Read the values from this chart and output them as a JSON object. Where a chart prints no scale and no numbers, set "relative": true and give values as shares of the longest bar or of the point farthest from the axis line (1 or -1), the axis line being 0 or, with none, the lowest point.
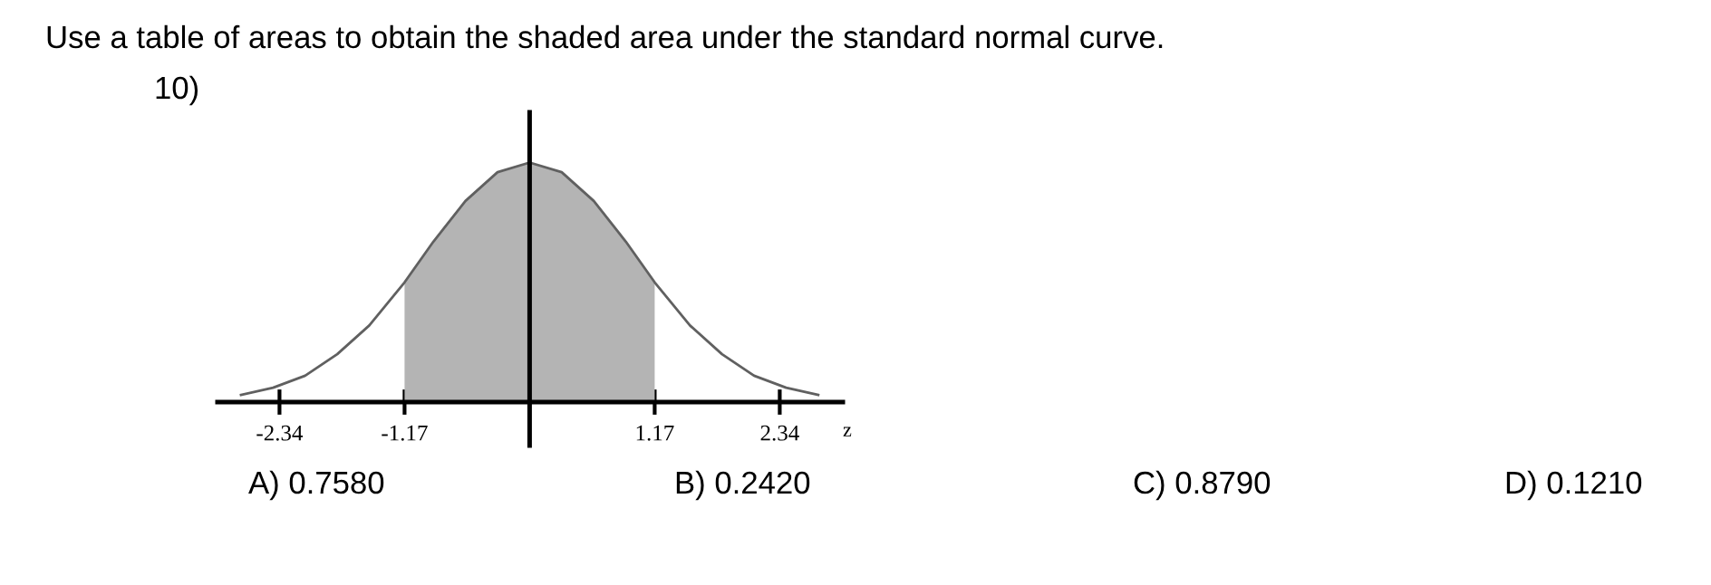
{
  "chart_data": {
    "type": "line",
    "relative": true,
    "title": "Use a table of areas to obtain the shaded area under the standard normal curve.",
    "xlabel": "z",
    "annotations": [
      "10)",
      "A) 0.7580",
      "B) 0.2420",
      "C) 0.8790",
      "D) 0.1210"
    ],
    "series": [
      {
        "type": "area",
        "color": "#b4b4b4",
        "x": [
          -1.17,
          -0.9,
          -0.6,
          -0.3,
          0,
          0.3,
          0.6,
          0.9,
          1.17
        ],
        "values": [
          0.5,
          0.67,
          0.84,
          0.96,
          1,
          0.96,
          0.84,
          0.67,
          0.5
        ]
      },
      {
        "color": "#606060",
        "x": [
          -2.7,
          -2.4,
          -2.1,
          -1.8,
          -1.5,
          -1.17,
          -0.9,
          -0.6,
          -0.3,
          0,
          0.3,
          0.6,
          0.9,
          1.17,
          1.5,
          1.8,
          2.1,
          2.4,
          2.7
        ],
        "values": [
          0.03,
          0.06,
          0.11,
          0.2,
          0.32,
          0.5,
          0.67,
          0.84,
          0.96,
          1,
          0.96,
          0.84,
          0.67,
          0.5,
          0.32,
          0.2,
          0.11,
          0.06,
          0.03
        ]
      }
    ],
    "xlim": [
      -2.92,
      2.93
    ],
    "xticks": [
      -2.34,
      -1.17,
      1.17,
      2.34
    ],
    "ref_lines": [
      {
        "axis": "x",
        "value": 0,
        "color": "#000000"
      }
    ],
    "tick_labels": "x",
    "grid": false,
    "legend": false
  }
}
